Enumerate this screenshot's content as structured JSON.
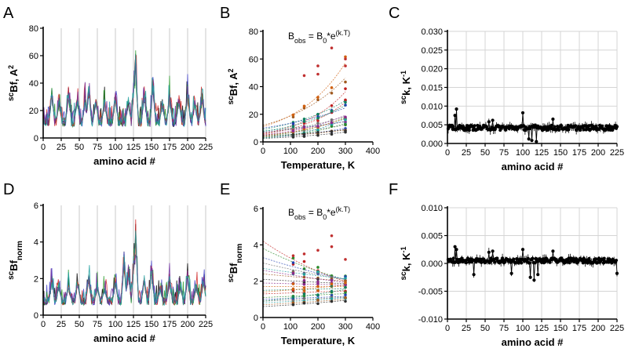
{
  "figure": {
    "panels": [
      "A",
      "B",
      "C",
      "D",
      "E",
      "F"
    ]
  },
  "chart_data": [
    {
      "id": "A",
      "label": "A",
      "type": "line",
      "title": "",
      "xlabel": "amino acid #",
      "ylabel_main": "sc",
      "ylabel_sub": "Bf, A",
      "ylabel_sup": "2",
      "xlim": [
        0,
        225
      ],
      "ylim": [
        0,
        80
      ],
      "xticks": [
        0,
        25,
        50,
        75,
        100,
        125,
        150,
        175,
        200,
        225
      ],
      "yticks": [
        0,
        20,
        40,
        60,
        80
      ],
      "vgrid": [
        25,
        50,
        75,
        100,
        125,
        150,
        175,
        200,
        225
      ],
      "series_colors": [
        "#000000",
        "#4040c8",
        "#2a9a2a",
        "#d02a2a",
        "#7030a0",
        "#20a0a0"
      ],
      "series_count": 6,
      "baseline": 15,
      "peaks": [
        {
          "x": 12,
          "y": 40
        },
        {
          "x": 22,
          "y": 33
        },
        {
          "x": 35,
          "y": 42
        },
        {
          "x": 47,
          "y": 36
        },
        {
          "x": 58,
          "y": 33
        },
        {
          "x": 63,
          "y": 44
        },
        {
          "x": 73,
          "y": 35
        },
        {
          "x": 85,
          "y": 33
        },
        {
          "x": 100,
          "y": 40
        },
        {
          "x": 118,
          "y": 34
        },
        {
          "x": 126,
          "y": 55
        },
        {
          "x": 128,
          "y": 68
        },
        {
          "x": 140,
          "y": 40
        },
        {
          "x": 152,
          "y": 48
        },
        {
          "x": 165,
          "y": 32
        },
        {
          "x": 175,
          "y": 38
        },
        {
          "x": 188,
          "y": 36
        },
        {
          "x": 200,
          "y": 43
        },
        {
          "x": 210,
          "y": 32
        },
        {
          "x": 220,
          "y": 36
        }
      ]
    },
    {
      "id": "B",
      "label": "B",
      "type": "scatter",
      "title": "",
      "xlabel": "Temperature, K",
      "ylabel_main": "sc",
      "ylabel_sub": "Bf, A",
      "ylabel_sup": "2",
      "xlim": [
        0,
        400
      ],
      "ylim": [
        0,
        80
      ],
      "xticks": [
        0,
        100,
        200,
        300,
        400
      ],
      "yticks": [
        0,
        20,
        40,
        60,
        80
      ],
      "x": [
        110,
        150,
        200,
        250,
        300
      ],
      "equation": {
        "lhs": "B",
        "lhs_sub": "obs",
        "mid": " = B",
        "mid_sub": "0",
        "rhs": "*e",
        "rhs_sup": "(k.T)"
      },
      "curves": [
        {
          "b0": 6.0,
          "k": 0.006
        },
        {
          "b0": 4.0,
          "k": 0.005
        },
        {
          "b0": 3.0,
          "k": 0.004
        },
        {
          "b0": 5.0,
          "k": 0.003
        },
        {
          "b0": 8.0,
          "k": 0.002
        },
        {
          "b0": 3.5,
          "k": 0.003
        },
        {
          "b0": 2.5,
          "k": 0.0035
        },
        {
          "b0": 7.0,
          "k": 0.0025
        },
        {
          "b0": 4.5,
          "k": 0.0045
        },
        {
          "b0": 9.0,
          "k": 0.004
        },
        {
          "b0": 5.5,
          "k": 0.0055
        },
        {
          "b0": 3.0,
          "k": 0.005
        },
        {
          "b0": 10.0,
          "k": 0.003
        },
        {
          "b0": 6.5,
          "k": 0.0035
        },
        {
          "b0": 2.8,
          "k": 0.006
        },
        {
          "b0": 12.0,
          "k": 0.0045
        },
        {
          "b0": 4.2,
          "k": 0.0025
        },
        {
          "b0": 5.0,
          "k": 0.0045
        },
        {
          "b0": 11.0,
          "k": 0.0055
        },
        {
          "b0": 7.5,
          "k": 0.0042
        }
      ],
      "outliers": [
        {
          "x": 200,
          "y": 55
        },
        {
          "x": 250,
          "y": 68
        },
        {
          "x": 300,
          "y": 60
        },
        {
          "x": 150,
          "y": 48
        },
        {
          "x": 200,
          "y": 49
        },
        {
          "x": 300,
          "y": 55
        }
      ]
    },
    {
      "id": "C",
      "label": "C",
      "type": "scatter",
      "title": "",
      "xlabel": "amino acid #",
      "ylabel_main": "sc",
      "ylabel_sub": "k",
      "ylabel_unit": ", K",
      "ylabel_sup": "-1",
      "xlim": [
        0,
        225
      ],
      "ylim": [
        0,
        0.03
      ],
      "xticks": [
        0,
        25,
        50,
        75,
        100,
        125,
        150,
        175,
        200,
        225
      ],
      "yticks": [
        0.0,
        0.005,
        0.01,
        0.015,
        0.02,
        0.025,
        0.03
      ],
      "ytick_labels": [
        "0.000",
        "0.005",
        "0.010",
        "0.015",
        "0.020",
        "0.025",
        "0.030"
      ],
      "mean": 0.0042,
      "features": [
        {
          "x": 12,
          "y": 0.0092
        },
        {
          "x": 10,
          "y": 0.0075
        },
        {
          "x": 55,
          "y": 0.0058
        },
        {
          "x": 60,
          "y": 0.0062
        },
        {
          "x": 100,
          "y": 0.0082
        },
        {
          "x": 108,
          "y": 0.0012
        },
        {
          "x": 112,
          "y": 0.0008
        },
        {
          "x": 118,
          "y": 0.0005
        },
        {
          "x": 140,
          "y": 0.0065
        }
      ]
    },
    {
      "id": "D",
      "label": "D",
      "type": "line",
      "title": "",
      "xlabel": "amino acid #",
      "ylabel_main": "sc",
      "ylabel_sub": "Bf",
      "ylabel_sub2": "norm",
      "xlim": [
        0,
        225
      ],
      "ylim": [
        0,
        6
      ],
      "xticks": [
        0,
        25,
        50,
        75,
        100,
        125,
        150,
        175,
        200,
        225
      ],
      "yticks": [
        0,
        2,
        4,
        6
      ],
      "vgrid": [
        25,
        50,
        75,
        100,
        125,
        150,
        175,
        200,
        225
      ],
      "series_colors": [
        "#000000",
        "#4040c8",
        "#2a9a2a",
        "#d02a2a",
        "#7030a0",
        "#20a0a0"
      ],
      "series_count": 6,
      "baseline": 1.0,
      "peaks": [
        {
          "x": 12,
          "y": 2.2
        },
        {
          "x": 22,
          "y": 2.0
        },
        {
          "x": 35,
          "y": 2.0
        },
        {
          "x": 48,
          "y": 2.2
        },
        {
          "x": 63,
          "y": 2.6
        },
        {
          "x": 75,
          "y": 2.0
        },
        {
          "x": 85,
          "y": 1.8
        },
        {
          "x": 100,
          "y": 2.3
        },
        {
          "x": 112,
          "y": 3.7
        },
        {
          "x": 118,
          "y": 3.0
        },
        {
          "x": 126,
          "y": 4.2
        },
        {
          "x": 128,
          "y": 5.2
        },
        {
          "x": 140,
          "y": 2.5
        },
        {
          "x": 150,
          "y": 3.2
        },
        {
          "x": 162,
          "y": 1.8
        },
        {
          "x": 175,
          "y": 2.5
        },
        {
          "x": 190,
          "y": 2.0
        },
        {
          "x": 200,
          "y": 2.8
        },
        {
          "x": 212,
          "y": 2.0
        },
        {
          "x": 222,
          "y": 2.5
        }
      ]
    },
    {
      "id": "E",
      "label": "E",
      "type": "scatter",
      "title": "",
      "xlabel": "Temperature, K",
      "ylabel_main": "sc",
      "ylabel_sub": "Bf",
      "ylabel_sub2": "norm",
      "xlim": [
        0,
        400
      ],
      "ylim": [
        0,
        6
      ],
      "xticks": [
        0,
        100,
        200,
        300,
        400
      ],
      "yticks": [
        0,
        2,
        4,
        6
      ],
      "x": [
        110,
        150,
        200,
        250,
        300
      ],
      "equation": {
        "lhs": "B",
        "lhs_sub": "obs",
        "mid": " = B",
        "mid_sub": "0",
        "rhs": "*e",
        "rhs_sup": "(k.T)"
      },
      "curves": [
        {
          "b0": 4.2,
          "k": -0.0025
        },
        {
          "b0": 3.8,
          "k": -0.002
        },
        {
          "b0": 3.3,
          "k": -0.0015
        },
        {
          "b0": 3.0,
          "k": -0.0012
        },
        {
          "b0": 2.7,
          "k": -0.0008
        },
        {
          "b0": 2.4,
          "k": -0.0006
        },
        {
          "b0": 2.1,
          "k": -0.0004
        },
        {
          "b0": 1.9,
          "k": -0.0002
        },
        {
          "b0": 1.7,
          "k": 0.0
        },
        {
          "b0": 1.5,
          "k": 0.0002
        },
        {
          "b0": 1.3,
          "k": 0.0004
        },
        {
          "b0": 1.1,
          "k": 0.0006
        },
        {
          "b0": 1.0,
          "k": 0.0005
        },
        {
          "b0": 0.9,
          "k": 0.0007
        },
        {
          "b0": 0.8,
          "k": 0.001
        },
        {
          "b0": 0.7,
          "k": 0.0012
        },
        {
          "b0": 0.6,
          "k": 0.0015
        },
        {
          "b0": 2.6,
          "k": -0.001
        },
        {
          "b0": 1.4,
          "k": 0.0008
        },
        {
          "b0": 0.9,
          "k": 0.0018
        }
      ],
      "outliers": [
        {
          "x": 110,
          "y": 3.4
        },
        {
          "x": 150,
          "y": 3.5
        },
        {
          "x": 200,
          "y": 3.7
        },
        {
          "x": 250,
          "y": 4.5
        },
        {
          "x": 300,
          "y": 3.2
        },
        {
          "x": 250,
          "y": 3.9
        }
      ]
    },
    {
      "id": "F",
      "label": "F",
      "type": "scatter",
      "title": "",
      "xlabel": "amino acid #",
      "ylabel_main": "sc",
      "ylabel_sub": "k",
      "ylabel_unit": ", K",
      "ylabel_sup": "-1",
      "xlim": [
        0,
        225
      ],
      "ylim": [
        -0.01,
        0.01
      ],
      "xticks": [
        0,
        25,
        50,
        75,
        100,
        125,
        150,
        175,
        200,
        225
      ],
      "yticks": [
        -0.01,
        -0.005,
        0.0,
        0.005,
        0.01
      ],
      "ytick_labels": [
        "-0.010",
        "-0.005",
        "0.000",
        "0.005",
        "0.010"
      ],
      "mean": 0.0005,
      "features": [
        {
          "x": 10,
          "y": 0.003
        },
        {
          "x": 12,
          "y": 0.0025
        },
        {
          "x": 55,
          "y": 0.002
        },
        {
          "x": 60,
          "y": 0.0022
        },
        {
          "x": 100,
          "y": 0.0025
        },
        {
          "x": 110,
          "y": -0.0025
        },
        {
          "x": 115,
          "y": -0.003
        },
        {
          "x": 120,
          "y": -0.002
        },
        {
          "x": 140,
          "y": 0.0022
        },
        {
          "x": 35,
          "y": -0.002
        },
        {
          "x": 85,
          "y": -0.0018
        },
        {
          "x": 225,
          "y": -0.0018
        }
      ]
    }
  ]
}
